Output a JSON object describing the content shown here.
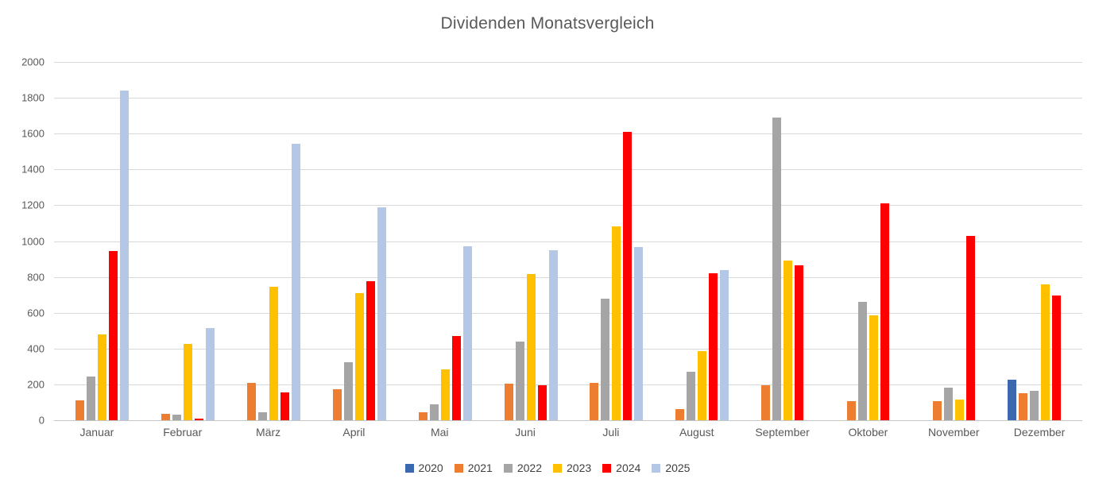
{
  "title": "Dividenden Monatsvergleich",
  "chart_data": {
    "type": "bar",
    "title": "Dividenden Monatsvergleich",
    "categories": [
      "Januar",
      "Februar",
      "März",
      "April",
      "Mai",
      "Juni",
      "Juli",
      "August",
      "September",
      "Oktober",
      "November",
      "Dezember"
    ],
    "series": [
      {
        "name": "2020",
        "color": "#3b68ae",
        "values": [
          0,
          0,
          0,
          0,
          0,
          0,
          0,
          0,
          0,
          0,
          0,
          225
        ]
      },
      {
        "name": "2021",
        "color": "#ed7d31",
        "values": [
          110,
          35,
          210,
          175,
          45,
          205,
          210,
          60,
          195,
          105,
          105,
          150
        ]
      },
      {
        "name": "2022",
        "color": "#a5a5a5",
        "values": [
          245,
          30,
          45,
          325,
          90,
          440,
          680,
          270,
          1690,
          660,
          180,
          165
        ]
      },
      {
        "name": "2023",
        "color": "#ffc000",
        "values": [
          480,
          425,
          745,
          710,
          285,
          815,
          1080,
          385,
          890,
          585,
          115,
          760
        ]
      },
      {
        "name": "2024",
        "color": "#ff0000",
        "values": [
          945,
          10,
          155,
          775,
          470,
          195,
          1610,
          820,
          865,
          1210,
          1030,
          695
        ]
      },
      {
        "name": "2025",
        "color": "#b4c7e7",
        "values": [
          1840,
          515,
          1545,
          1190,
          970,
          950,
          965,
          840,
          0,
          0,
          0,
          0
        ]
      }
    ],
    "ylim": [
      0,
      2000
    ],
    "ytick_step": 200,
    "yticks": [
      "0",
      "200",
      "400",
      "600",
      "800",
      "1000",
      "1200",
      "1400",
      "1600",
      "1800",
      "2000"
    ],
    "grid": true,
    "legend_position": "bottom",
    "xlabel": "",
    "ylabel": ""
  },
  "style": {
    "gridline_color": "#d9d9d9",
    "axis_line_color": "#c6c6c6",
    "title_color": "#595959",
    "tick_label_color": "#595959",
    "legend_label_color": "#404040"
  }
}
